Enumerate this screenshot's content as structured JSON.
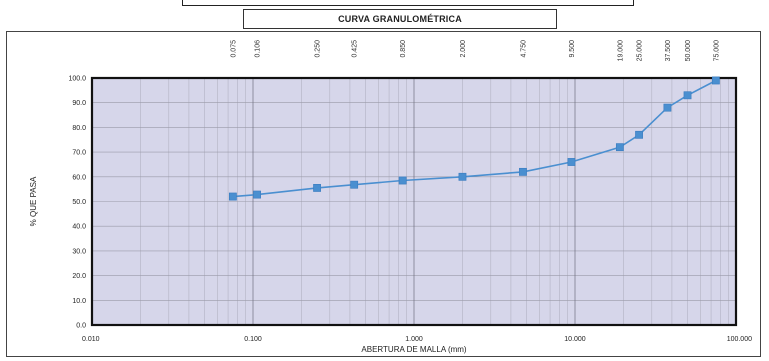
{
  "chart_data": {
    "type": "line",
    "title": "CURVA GRANULOMÉTRICA",
    "xlabel": "ABERTURA DE MALLA (mm)",
    "ylabel": "% QUE PASA",
    "x_scale": "log",
    "xlim": [
      0.01,
      100
    ],
    "ylim": [
      0,
      100
    ],
    "grid": true,
    "x_tick_labels": [
      "0.010",
      "0.100",
      "1.000",
      "10.000",
      "100.000"
    ],
    "y_tick_labels": [
      "0.0",
      "10.0",
      "20.0",
      "30.0",
      "40.0",
      "50.0",
      "60.0",
      "70.0",
      "80.0",
      "90.0",
      "100.0"
    ],
    "sieve_labels": [
      "0.075",
      "0.106",
      "0.250",
      "0.425",
      "0.850",
      "2.000",
      "4.750",
      "9.500",
      "19.000",
      "25.000",
      "37.500",
      "50.000",
      "75.000"
    ],
    "series": [
      {
        "x": [
          0.075,
          0.106,
          0.25,
          0.425,
          0.85,
          2.0,
          4.75,
          9.5,
          19.0,
          25.0,
          37.5,
          50.0,
          75.0
        ],
        "values": [
          52.0,
          52.8,
          55.5,
          56.8,
          58.5,
          60.0,
          62.0,
          66.0,
          72.0,
          77.0,
          88.0,
          93.0,
          99.0
        ]
      }
    ],
    "colors": {
      "series": "#4a8fd0",
      "plot_background": "#d6d6ea",
      "grid": "#9a9aa8"
    }
  }
}
